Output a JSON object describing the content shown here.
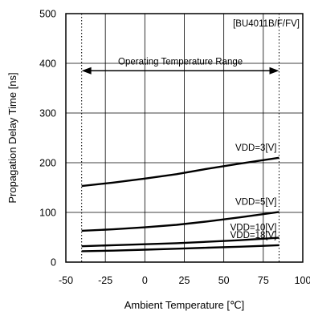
{
  "chart_data": {
    "type": "line",
    "title": "",
    "xlabel": "Ambient Temperature [℃]",
    "ylabel": "Propagation Delay Time [ns]",
    "xlim": [
      -50,
      100
    ],
    "ylim": [
      0,
      500
    ],
    "x_ticks": [
      "-50",
      "-25",
      "0",
      "25",
      "50",
      "75",
      "100"
    ],
    "y_ticks": [
      "0",
      "100",
      "200",
      "300",
      "400",
      "500"
    ],
    "grid": true,
    "annotations": {
      "part_label": "[BU4011B/F/FV]",
      "range_label": "Operating Temperature Range",
      "range": [
        -40,
        85
      ]
    },
    "series": [
      {
        "name": "VDD=3[V]",
        "x": [
          -40,
          -20,
          0,
          20,
          40,
          60,
          85
        ],
        "y": [
          153,
          160,
          168,
          177,
          188,
          198,
          210
        ]
      },
      {
        "name": "VDD=5[V]",
        "x": [
          -40,
          -20,
          0,
          20,
          40,
          60,
          85
        ],
        "y": [
          63,
          66,
          70,
          75,
          82,
          90,
          101
        ]
      },
      {
        "name": "VDD=10[V]",
        "x": [
          -40,
          -20,
          0,
          20,
          40,
          60,
          85
        ],
        "y": [
          32,
          34,
          36,
          38,
          41,
          44,
          49
        ]
      },
      {
        "name": "VDD=18[V]",
        "x": [
          -40,
          -20,
          0,
          20,
          40,
          60,
          85
        ],
        "y": [
          22,
          23,
          25,
          27,
          29,
          31,
          34
        ]
      }
    ]
  }
}
